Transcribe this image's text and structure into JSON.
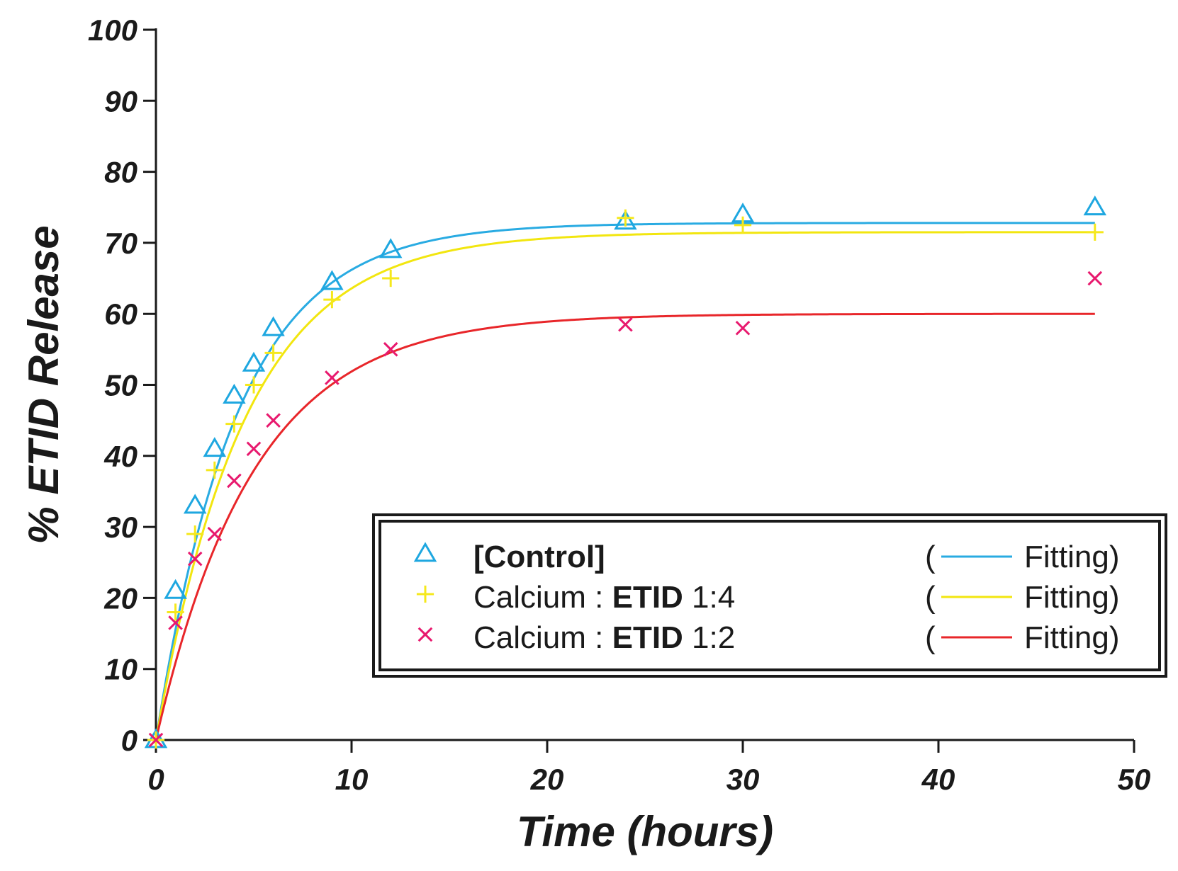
{
  "chart_data": {
    "type": "scatter",
    "title": "",
    "xlabel": "Time (hours)",
    "ylabel": "% ETID Release",
    "xlim": [
      0,
      50
    ],
    "ylim": [
      0,
      100
    ],
    "xticks": [
      0,
      10,
      20,
      30,
      40,
      50
    ],
    "yticks": [
      0,
      10,
      20,
      30,
      40,
      50,
      60,
      70,
      80,
      90,
      100
    ],
    "legend_position": "bottom-right",
    "series": [
      {
        "name": "[Control]",
        "name_parts": [
          {
            "text": "[Control]",
            "bold": true
          }
        ],
        "fit_label": "Fitting",
        "marker": "triangle",
        "color": "#1ea7e0",
        "fit_color": "#29abe2",
        "x": [
          0,
          1,
          2,
          3,
          4,
          5,
          6,
          9,
          12,
          24,
          30,
          48
        ],
        "y": [
          0,
          21,
          33,
          41,
          48.5,
          53,
          58,
          64.5,
          69,
          73,
          74,
          75
        ],
        "fit": {
          "model": "first-order",
          "plateau": 72.8,
          "k": 0.24
        }
      },
      {
        "name": "Calcium : ETID 1:4",
        "name_parts": [
          {
            "text": "Calcium : ",
            "bold": false
          },
          {
            "text": "ETID",
            "bold": true
          },
          {
            "text": " 1:4",
            "bold": false
          }
        ],
        "fit_label": "Fitting",
        "marker": "plus",
        "color": "#f5e81c",
        "fit_color": "#f2e60f",
        "x": [
          0,
          1,
          2,
          3,
          4,
          5,
          6,
          9,
          12,
          24,
          30,
          48
        ],
        "y": [
          0,
          18,
          29,
          38,
          44.5,
          50,
          54.5,
          62,
          65,
          73.5,
          72.5,
          71.5
        ],
        "fit": {
          "model": "first-order",
          "plateau": 71.5,
          "k": 0.22
        }
      },
      {
        "name": "Calcium : ETID 1:2",
        "name_parts": [
          {
            "text": "Calcium : ",
            "bold": false
          },
          {
            "text": "ETID",
            "bold": true
          },
          {
            "text": " 1:2",
            "bold": false
          }
        ],
        "fit_label": "Fitting",
        "marker": "cross",
        "color": "#e8196e",
        "fit_color": "#e8262a",
        "x": [
          0,
          1,
          2,
          3,
          4,
          5,
          6,
          9,
          12,
          24,
          30,
          48
        ],
        "y": [
          0,
          16.5,
          25.5,
          29,
          36.5,
          41,
          45,
          51,
          55,
          58.5,
          58,
          65
        ],
        "fit": {
          "model": "first-order",
          "plateau": 60,
          "k": 0.2
        }
      }
    ]
  }
}
